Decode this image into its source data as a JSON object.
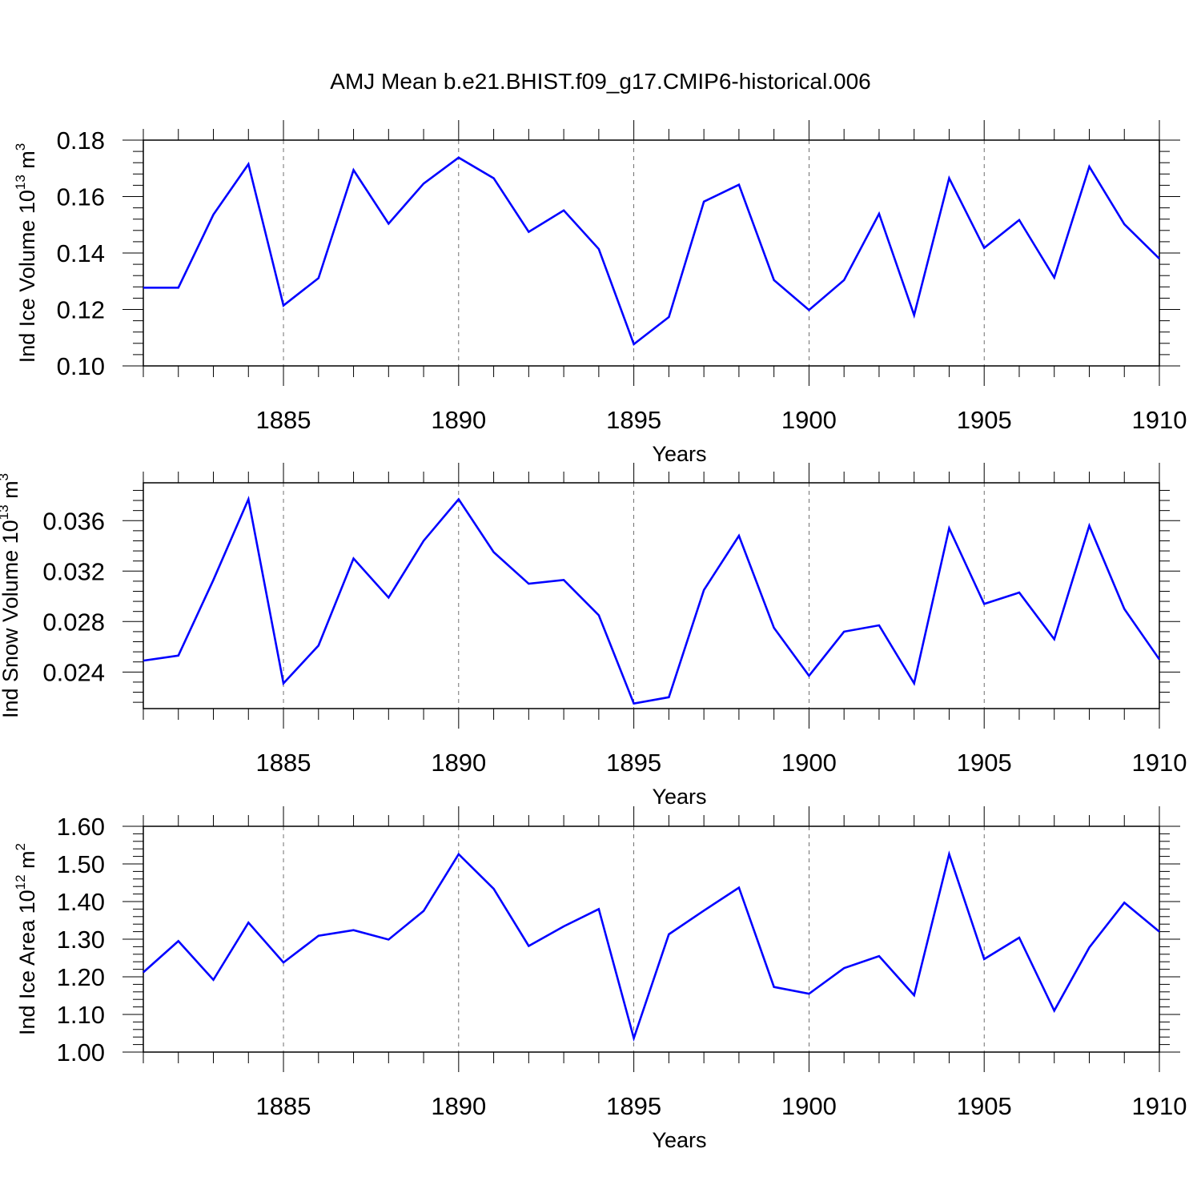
{
  "title": "AMJ Mean b.e21.BHIST.f09_g17.CMIP6-historical.006",
  "colors": {
    "line": "#0000ff",
    "axes": "#000000",
    "grid": "#000000",
    "background": "#ffffff"
  },
  "chart_data": [
    {
      "type": "line",
      "xlabel": "Years",
      "ylabel": {
        "text": "Ind Ice Volume 10",
        "exp": "13",
        "unit": " m",
        "unit_exp": "3"
      },
      "xlim": [
        1881,
        1910
      ],
      "ylim": [
        0.1,
        0.18
      ],
      "xticks": [
        1885,
        1890,
        1895,
        1900,
        1905,
        1910
      ],
      "xtick_labels": [
        "1885",
        "1890",
        "1895",
        "1900",
        "1905",
        "1910"
      ],
      "yticks": [
        0.1,
        0.12,
        0.14,
        0.16,
        0.18
      ],
      "ytick_labels": [
        "0.10",
        "0.12",
        "0.14",
        "0.16",
        "0.18"
      ],
      "grid": "vertical-dashed",
      "x": [
        1881,
        1882,
        1883,
        1884,
        1885,
        1886,
        1887,
        1888,
        1889,
        1890,
        1891,
        1892,
        1893,
        1894,
        1895,
        1896,
        1897,
        1898,
        1899,
        1900,
        1901,
        1902,
        1903,
        1904,
        1905,
        1906,
        1907,
        1908,
        1909,
        1910
      ],
      "series": [
        {
          "values": [
            0.1277,
            0.1277,
            0.1536,
            0.1715,
            0.1214,
            0.1311,
            0.1694,
            0.1504,
            0.1646,
            0.1738,
            0.1665,
            0.1475,
            0.1551,
            0.1414,
            0.1077,
            0.1173,
            0.1582,
            0.1642,
            0.1304,
            0.1198,
            0.1304,
            0.1539,
            0.118,
            0.1665,
            0.1418,
            0.1517,
            0.1313,
            0.1706,
            0.1502,
            0.138
          ]
        }
      ]
    },
    {
      "type": "line",
      "xlabel": "Years",
      "ylabel": {
        "text": "Ind Snow Volume 10",
        "exp": "13",
        "unit": " m",
        "unit_exp": "3"
      },
      "xlim": [
        1881,
        1910
      ],
      "ylim": [
        0.0211,
        0.039
      ],
      "xticks": [
        1885,
        1890,
        1895,
        1900,
        1905,
        1910
      ],
      "xtick_labels": [
        "1885",
        "1890",
        "1895",
        "1900",
        "1905",
        "1910"
      ],
      "yticks": [
        0.024,
        0.028,
        0.032,
        0.036
      ],
      "ytick_labels": [
        "0.024",
        "0.028",
        "0.032",
        "0.036"
      ],
      "grid": "vertical-dashed",
      "x": [
        1881,
        1882,
        1883,
        1884,
        1885,
        1886,
        1887,
        1888,
        1889,
        1890,
        1891,
        1892,
        1893,
        1894,
        1895,
        1896,
        1897,
        1898,
        1899,
        1900,
        1901,
        1902,
        1903,
        1904,
        1905,
        1906,
        1907,
        1908,
        1909,
        1910
      ],
      "series": [
        {
          "values": [
            0.0249,
            0.0253,
            0.0313,
            0.0377,
            0.0231,
            0.0261,
            0.033,
            0.0299,
            0.0344,
            0.0377,
            0.0335,
            0.031,
            0.0313,
            0.0285,
            0.0215,
            0.022,
            0.0305,
            0.0348,
            0.0275,
            0.0237,
            0.0272,
            0.0277,
            0.0231,
            0.0354,
            0.0294,
            0.0303,
            0.0266,
            0.0356,
            0.029,
            0.025
          ]
        }
      ]
    },
    {
      "type": "line",
      "xlabel": "Years",
      "ylabel": {
        "text": "Ind Ice Area 10",
        "exp": "12",
        "unit": " m",
        "unit_exp": "2"
      },
      "xlim": [
        1881,
        1910
      ],
      "ylim": [
        1.0,
        1.6
      ],
      "xticks": [
        1885,
        1890,
        1895,
        1900,
        1905,
        1910
      ],
      "xtick_labels": [
        "1885",
        "1890",
        "1895",
        "1900",
        "1905",
        "1910"
      ],
      "yticks": [
        1.0,
        1.1,
        1.2,
        1.3,
        1.4,
        1.5,
        1.6
      ],
      "ytick_labels": [
        "1.00",
        "1.10",
        "1.20",
        "1.30",
        "1.40",
        "1.50",
        "1.60"
      ],
      "grid": "vertical-dashed",
      "x": [
        1881,
        1882,
        1883,
        1884,
        1885,
        1886,
        1887,
        1888,
        1889,
        1890,
        1891,
        1892,
        1893,
        1894,
        1895,
        1896,
        1897,
        1898,
        1899,
        1900,
        1901,
        1902,
        1903,
        1904,
        1905,
        1906,
        1907,
        1908,
        1909,
        1910
      ],
      "series": [
        {
          "values": [
            1.212,
            1.295,
            1.192,
            1.344,
            1.238,
            1.309,
            1.324,
            1.299,
            1.375,
            1.526,
            1.434,
            1.282,
            1.334,
            1.38,
            1.037,
            1.313,
            1.376,
            1.437,
            1.173,
            1.155,
            1.223,
            1.255,
            1.151,
            1.526,
            1.247,
            1.304,
            1.11,
            1.278,
            1.397,
            1.32
          ]
        }
      ]
    }
  ]
}
